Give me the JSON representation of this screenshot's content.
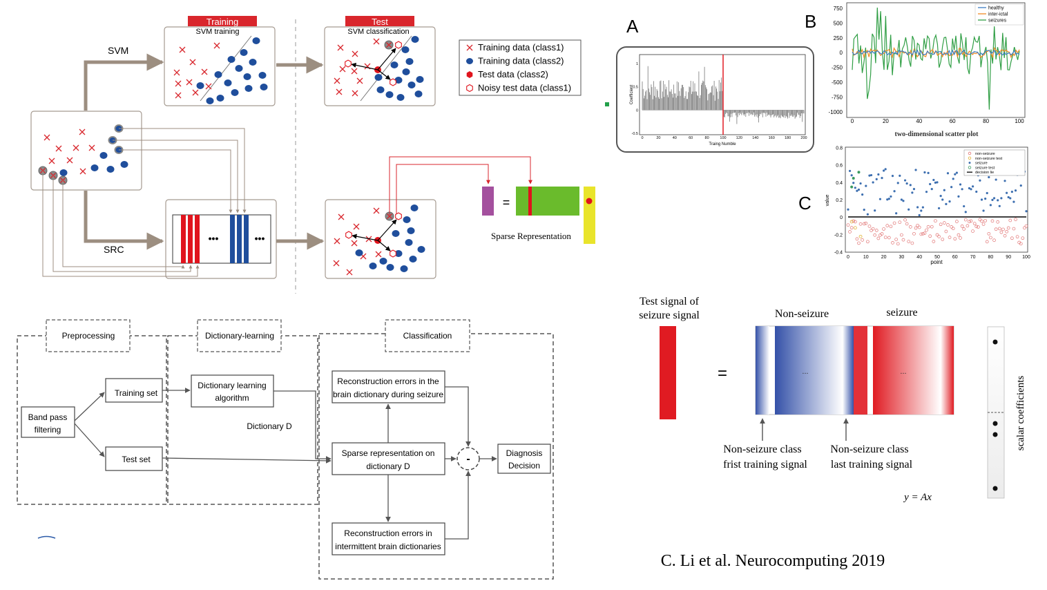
{
  "svm_src": {
    "training_header": "Training",
    "test_header": "Test",
    "svm_training_label": "SVM training",
    "svm_classification_label": "SVM classification",
    "svm_label": "SVM",
    "src_label": "SRC",
    "ellipsis": "•••",
    "equals": "=",
    "sparse_representation_label": "Sparse Representation",
    "legend": [
      {
        "marker": "cross",
        "color": "#d8262c",
        "label": "Training data (class1)"
      },
      {
        "marker": "dot",
        "color": "#1f4e9c",
        "label": "Training data (class2)"
      },
      {
        "marker": "hex-filled",
        "color": "#e0141d",
        "label": "Test data (class2)"
      },
      {
        "marker": "hex-open",
        "color": "#e0141d",
        "label": "Noisy test data (class1)"
      }
    ],
    "colors": {
      "red": "#d8262c",
      "blue": "#1f4e9c",
      "arrow": "#9c8e80",
      "header": "#d9262c",
      "green": "#6abb2c",
      "purple": "#a4509e",
      "yellow": "#e9e42b"
    }
  },
  "pipeline": {
    "sections": {
      "preprocessing": "Preprocessing",
      "dictionary_learning": "Dictionary-learning",
      "classification": "Classification"
    },
    "band_pass": [
      "Band pass",
      "filtering"
    ],
    "training_set": "Training set",
    "test_set": "Test set",
    "dict_algo": [
      "Dictionary learning",
      "algorithm"
    ],
    "dictionary_d": "Dictionary D",
    "recon_seizure": [
      "Reconstruction errors in the",
      "brain dictionary during seizure"
    ],
    "sparse_rep": [
      "Sparse representation on",
      "dictionary D"
    ],
    "recon_intermittent": [
      "Reconstruction errors in",
      "intermittent brain dictionaries"
    ],
    "minus": "-",
    "diagnosis": [
      "Diagnosis",
      "Decision"
    ]
  },
  "panel_a": {
    "label": "A",
    "ylabel": "Coefficient",
    "xlabel": "Traing Numble",
    "xticks": [
      0,
      20,
      40,
      60,
      80,
      100,
      120,
      140,
      160,
      180,
      200
    ],
    "yticks": [
      -0.5,
      0,
      0.5,
      1
    ]
  },
  "panel_b": {
    "label": "B",
    "xlabel": "two-dimensional scatter plot",
    "xticks": [
      0,
      20,
      40,
      60,
      80,
      100
    ],
    "yticks": [
      750,
      500,
      250,
      0,
      -250,
      -500,
      -750,
      -1000
    ],
    "legend": [
      {
        "name": "healthy",
        "color": "#3b7dc4"
      },
      {
        "name": "inter-ictal",
        "color": "#f08a24"
      },
      {
        "name": "seizures",
        "color": "#2f9e44"
      }
    ]
  },
  "panel_c": {
    "label": "C",
    "ylabel": "value",
    "xlabel": "point",
    "xticks": [
      0,
      10,
      20,
      30,
      40,
      50,
      60,
      70,
      80,
      90,
      100
    ],
    "yticks": [
      0.8,
      0.6,
      0.4,
      0.2,
      0,
      -0.2,
      -0.4
    ],
    "legend": [
      {
        "name": "non-seizure",
        "color": "#e07070"
      },
      {
        "name": "non-seizure test",
        "color": "#e0b030"
      },
      {
        "name": "seizure",
        "color": "#3d6fb0"
      },
      {
        "name": "seizure test",
        "color": "#3a9a60"
      },
      {
        "name": "decision lie",
        "color": "#000000"
      }
    ]
  },
  "panel_d": {
    "test_signal": [
      "Test signal of",
      "seizure signal"
    ],
    "equals": "=",
    "non_seizure": "Non-seizure",
    "seizure": "seizure",
    "dots": "...",
    "first_signal": [
      "Non-seizure class",
      "frist training signal"
    ],
    "last_signal": [
      "Non-seizure class",
      "last training signal"
    ],
    "equation": "y = Ax",
    "scalar": "scalar coefficients",
    "colors": {
      "signal_red": "#e01b22",
      "blue": "#3451a8",
      "red": "#e01b22"
    }
  },
  "citation": "C. Li et al. Neurocomputing 2019"
}
